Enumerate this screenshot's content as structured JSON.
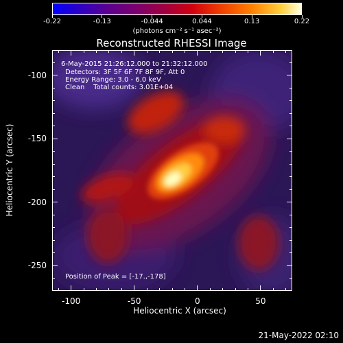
{
  "colorbar": {
    "tick_labels": [
      "-0.22",
      "-0.13",
      "-0.044",
      "0.044",
      "0.13",
      "0.22"
    ],
    "units": "(photons cm⁻² s⁻¹ asec⁻²)"
  },
  "title": "Reconstructed RHESSI Image",
  "info": {
    "time_range": "6-May-2015 21:26:12.000 to 21:32:12.000",
    "detectors": "Detectors: 3F 5F 6F 7F 8F 9F, Att 0",
    "energy": "Energy Range: 3.0 - 6.0 keV",
    "clean": "Clean    Total counts: 3.01E+04",
    "peak": "Position of Peak = [-17.,-178]"
  },
  "axes": {
    "xlabel": "Heliocentric X (arcsec)",
    "ylabel": "Heliocentric Y (arcsec)",
    "x_ticks": [
      "-100",
      "-50",
      "0",
      "50"
    ],
    "y_ticks": [
      "-100",
      "-150",
      "-200",
      "-250"
    ],
    "xlim": [
      -115,
      75
    ],
    "ylim": [
      -270,
      -80
    ]
  },
  "datestamp": "21-May-2022 02:10",
  "colors": {
    "background": "#000000",
    "low": "#2a1a6a",
    "mid": "#c01010",
    "high": "#ffffc0"
  }
}
